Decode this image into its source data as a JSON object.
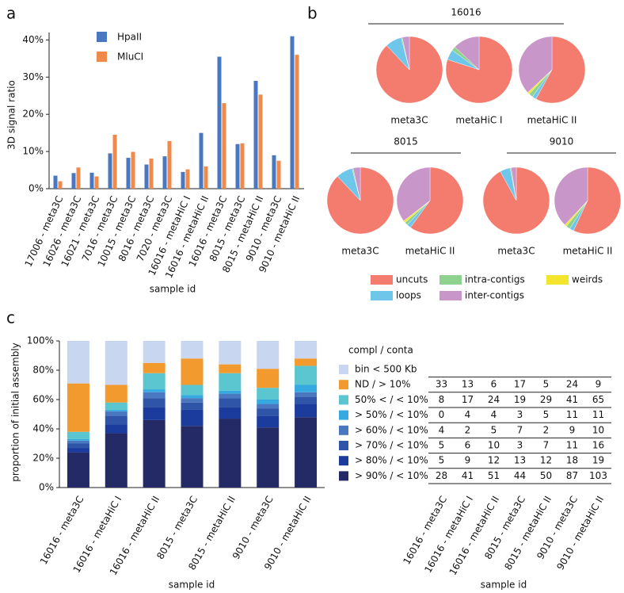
{
  "chart_data": [
    {
      "type": "bar",
      "panel": "a",
      "y_label": "3D signal ratio",
      "x_label": "sample id",
      "categories": [
        "17006 - meta3C",
        "16026 - meta3C",
        "16021 - meta3C",
        "7016 - meta3C",
        "10015 - meta3C",
        "8016 - meta3C",
        "7020 - meta3C",
        "16016 - metaHiC I",
        "16016 - metaHiC II",
        "16016 - meta3C",
        "8015 - meta3C",
        "8015 - metaHiC II",
        "9010 - meta3C",
        "9010 - metaHiC II"
      ],
      "series": [
        {
          "name": "HpaII",
          "color": "#4a78c0",
          "values": [
            3.5,
            4.2,
            4.3,
            9.5,
            8.3,
            6.5,
            8.7,
            4.5,
            15,
            35.5,
            12,
            29,
            9,
            41
          ]
        },
        {
          "name": "MluCI",
          "color": "#f08a4b",
          "values": [
            2,
            5.7,
            3.3,
            14.5,
            9.9,
            8.1,
            12.8,
            5.2,
            6,
            23,
            12.2,
            25.3,
            7.5,
            36
          ]
        }
      ],
      "ylim": [
        0,
        42
      ],
      "yticks": [
        {
          "value": 0,
          "label": "0%"
        },
        {
          "value": 10,
          "label": "10%"
        },
        {
          "value": 20,
          "label": "20%"
        },
        {
          "value": 30,
          "label": "30%"
        },
        {
          "value": 40,
          "label": "40%"
        }
      ]
    },
    {
      "type": "pie",
      "panel": "b",
      "slices": [
        "uncuts",
        "loops",
        "intra-contigs",
        "weirds",
        "inter-contigs"
      ],
      "colors": [
        "#f47c6f",
        "#6ec6ea",
        "#8fd18f",
        "#f2e52b",
        "#c896c8"
      ],
      "groups": [
        {
          "name": "16016",
          "pies": [
            {
              "label": "meta3C",
              "values": [
                88,
                8,
                0.5,
                0,
                3.5
              ]
            },
            {
              "label": "metaHiC I",
              "values": [
                80,
                5,
                2,
                0,
                13
              ]
            },
            {
              "label": "metaHiC II",
              "values": [
                58,
                2,
                2,
                1,
                37
              ]
            }
          ]
        },
        {
          "name": "8015",
          "pies": [
            {
              "label": "meta3C",
              "values": [
                88,
                8,
                0.5,
                0,
                3.5
              ]
            },
            {
              "label": "metaHiC II",
              "values": [
                60,
                2,
                1.5,
                1,
                35.5
              ]
            }
          ]
        },
        {
          "name": "9010",
          "pies": [
            {
              "label": "meta3C",
              "values": [
                92,
                5,
                0.5,
                0,
                2.5
              ]
            },
            {
              "label": "metaHiC II",
              "values": [
                57,
                2,
                2,
                1,
                38
              ]
            }
          ]
        }
      ]
    },
    {
      "type": "stacked_bar",
      "panel": "c",
      "y_label": "proportion of initial assembly",
      "x_label": "sample id",
      "legend_title": "compl / conta",
      "categories": [
        "16016 - meta3C",
        "16016 - metaHiC I",
        "16016 - metaHiC II",
        "8015 - meta3C",
        "8015 - metaHiC II",
        "9010 - meta3C",
        "9010 - metaHiC II"
      ],
      "series": [
        {
          "name": "> 90% / < 10%",
          "color": "#232a66",
          "values": [
            24,
            37,
            46,
            42,
            47,
            41,
            48
          ]
        },
        {
          "name": "> 80% / < 10%",
          "color": "#1b3c9c",
          "values": [
            3,
            6,
            9,
            11,
            8,
            8,
            9
          ]
        },
        {
          "name": "> 70% / < 10%",
          "color": "#2f55a8",
          "values": [
            3,
            6,
            6,
            5,
            6,
            5,
            5
          ]
        },
        {
          "name": "> 60% / < 10%",
          "color": "#4a78c0",
          "values": [
            2,
            3,
            4,
            3,
            3,
            3,
            3
          ]
        },
        {
          "name": "> 50% / < 10%",
          "color": "#36a9e1",
          "values": [
            1,
            1,
            2,
            2,
            2,
            3,
            5
          ]
        },
        {
          "name": "50% < / < 10%",
          "color": "#5cc6d0",
          "values": [
            5,
            5,
            11,
            7,
            12,
            8,
            13
          ]
        },
        {
          "name": "ND / > 10%",
          "color": "#f39a2e",
          "values": [
            33,
            12,
            7,
            18,
            6,
            13,
            5
          ]
        },
        {
          "name": "bin < 500 Kb",
          "color": "#c8d6f0",
          "values": [
            29,
            30,
            15,
            12,
            16,
            19,
            12
          ]
        }
      ],
      "ylim": [
        0,
        100
      ],
      "yticks": [
        {
          "value": 0,
          "label": "0%"
        },
        {
          "value": 20,
          "label": "20%"
        },
        {
          "value": 40,
          "label": "40%"
        },
        {
          "value": 60,
          "label": "60%"
        },
        {
          "value": 80,
          "label": "80%"
        },
        {
          "value": 100,
          "label": "100%"
        }
      ],
      "table": {
        "columns": [
          "16016 - meta3C",
          "16016 - metaHiC I",
          "16016 - metaHiC II",
          "8015 - meta3C",
          "8015 - metaHiC II",
          "9010 - meta3C",
          "9010 - metaHiC II"
        ],
        "rows": [
          [
            33,
            13,
            6,
            17,
            5,
            24,
            9
          ],
          [
            8,
            17,
            24,
            19,
            29,
            41,
            65
          ],
          [
            0,
            4,
            4,
            3,
            5,
            11,
            11
          ],
          [
            4,
            2,
            5,
            7,
            2,
            9,
            10
          ],
          [
            5,
            6,
            10,
            3,
            7,
            11,
            16
          ],
          [
            5,
            9,
            12,
            13,
            12,
            18,
            19
          ],
          [
            28,
            41,
            51,
            44,
            50,
            87,
            103
          ]
        ],
        "x_label": "sample id"
      }
    }
  ]
}
